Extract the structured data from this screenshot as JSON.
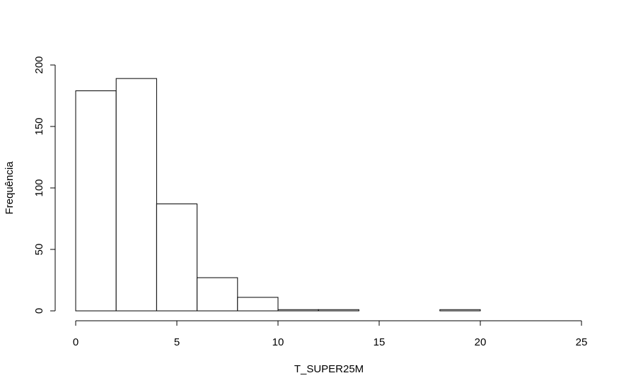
{
  "chart_data": {
    "type": "bar",
    "title": "",
    "xlabel": "T_SUPER25M",
    "ylabel": "Frequência",
    "xlim": [
      0,
      25
    ],
    "ylim": [
      0,
      200
    ],
    "x_ticks": [
      0,
      5,
      10,
      15,
      20,
      25
    ],
    "y_ticks": [
      0,
      50,
      100,
      150,
      200
    ],
    "grid": false,
    "bins": [
      {
        "start": 0,
        "end": 2,
        "count": 179
      },
      {
        "start": 2,
        "end": 4,
        "count": 189
      },
      {
        "start": 4,
        "end": 6,
        "count": 87
      },
      {
        "start": 6,
        "end": 8,
        "count": 27
      },
      {
        "start": 8,
        "end": 10,
        "count": 11
      },
      {
        "start": 10,
        "end": 12,
        "count": 1
      },
      {
        "start": 12,
        "end": 14,
        "count": 1
      },
      {
        "start": 14,
        "end": 16,
        "count": 0
      },
      {
        "start": 16,
        "end": 18,
        "count": 0
      },
      {
        "start": 18,
        "end": 20,
        "count": 1
      }
    ]
  }
}
